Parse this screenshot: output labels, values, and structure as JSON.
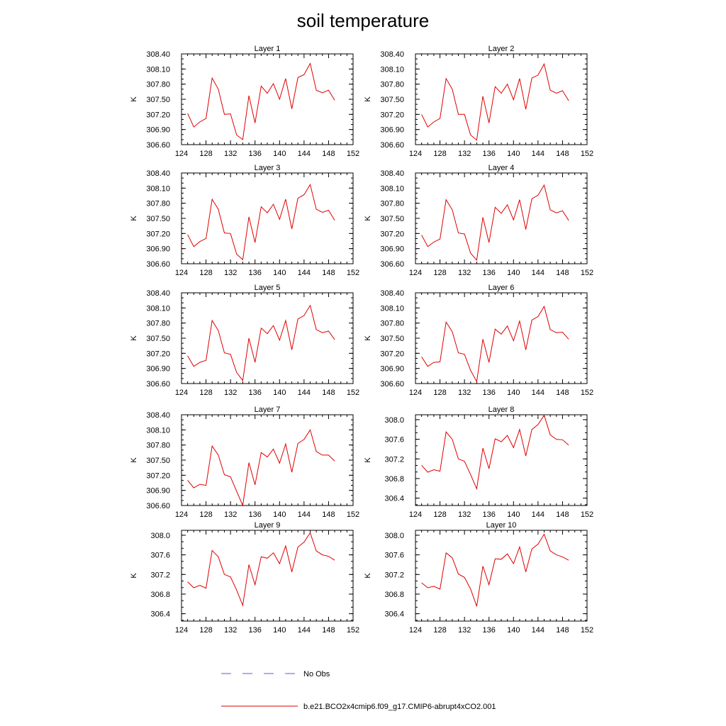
{
  "page_title": "soil temperature",
  "legend": [
    {
      "label": "No Obs",
      "color": "#5b5bd6",
      "dashed": true
    },
    {
      "label": "b.e21.BCO2x4cmip6.f09_g17.CMIP6-abrupt4xCO2.001",
      "color": "#e00000",
      "dashed": false
    }
  ],
  "chart_data": [
    {
      "type": "line",
      "title": "Layer 1",
      "ylabel": "K",
      "xlabel": "",
      "xlim": [
        124,
        152
      ],
      "ylim": [
        306.6,
        308.4
      ],
      "xticks": [
        "124",
        "128",
        "132",
        "136",
        "140",
        "144",
        "148",
        "152"
      ],
      "yticks": [
        "306.60",
        "306.90",
        "307.20",
        "307.50",
        "307.80",
        "308.10",
        "308.40"
      ],
      "x": [
        125,
        126,
        127,
        128,
        129,
        130,
        131,
        132,
        133,
        134,
        135,
        136,
        137,
        138,
        139,
        140,
        141,
        142,
        143,
        144,
        145,
        146,
        147,
        148,
        149
      ],
      "series": [
        {
          "name": "b.e21.BCO2x4cmip6.f09_g17.CMIP6-abrupt4xCO2.001",
          "values": [
            307.22,
            306.95,
            307.05,
            307.12,
            307.92,
            307.7,
            307.2,
            307.21,
            306.79,
            306.7,
            307.57,
            307.03,
            307.76,
            307.62,
            307.81,
            307.5,
            307.91,
            307.31,
            307.93,
            307.99,
            308.21,
            307.68,
            307.63,
            307.68,
            307.48
          ]
        }
      ]
    },
    {
      "type": "line",
      "title": "Layer 2",
      "ylabel": "K",
      "xlabel": "",
      "xlim": [
        124,
        152
      ],
      "ylim": [
        306.6,
        308.4
      ],
      "xticks": [
        "124",
        "128",
        "132",
        "136",
        "140",
        "144",
        "148",
        "152"
      ],
      "yticks": [
        "306.60",
        "306.90",
        "307.20",
        "307.50",
        "307.80",
        "308.10",
        "308.40"
      ],
      "x": [
        125,
        126,
        127,
        128,
        129,
        130,
        131,
        132,
        133,
        134,
        135,
        136,
        137,
        138,
        139,
        140,
        141,
        142,
        143,
        144,
        145,
        146,
        147,
        148,
        149
      ],
      "series": [
        {
          "name": "b.e21.BCO2x4cmip6.f09_g17.CMIP6-abrupt4xCO2.001",
          "values": [
            307.2,
            306.95,
            307.05,
            307.12,
            307.91,
            307.7,
            307.2,
            307.2,
            306.79,
            306.69,
            307.56,
            307.03,
            307.75,
            307.62,
            307.8,
            307.49,
            307.91,
            307.3,
            307.92,
            307.98,
            308.2,
            307.68,
            307.62,
            307.67,
            307.47
          ]
        }
      ]
    },
    {
      "type": "line",
      "title": "Layer 3",
      "ylabel": "K",
      "xlabel": "",
      "xlim": [
        124,
        152
      ],
      "ylim": [
        306.6,
        308.4
      ],
      "xticks": [
        "124",
        "128",
        "132",
        "136",
        "140",
        "144",
        "148",
        "152"
      ],
      "yticks": [
        "306.60",
        "306.90",
        "307.20",
        "307.50",
        "307.80",
        "308.10",
        "308.40"
      ],
      "x": [
        125,
        126,
        127,
        128,
        129,
        130,
        131,
        132,
        133,
        134,
        135,
        136,
        137,
        138,
        139,
        140,
        141,
        142,
        143,
        144,
        145,
        146,
        147,
        148,
        149
      ],
      "series": [
        {
          "name": "b.e21.BCO2x4cmip6.f09_g17.CMIP6-abrupt4xCO2.001",
          "values": [
            307.18,
            306.94,
            307.04,
            307.1,
            307.88,
            307.68,
            307.21,
            307.2,
            306.79,
            306.68,
            307.53,
            307.02,
            307.73,
            307.61,
            307.78,
            307.48,
            307.88,
            307.29,
            307.9,
            307.97,
            308.17,
            307.68,
            307.62,
            307.66,
            307.46
          ]
        }
      ]
    },
    {
      "type": "line",
      "title": "Layer 4",
      "ylabel": "K",
      "xlabel": "",
      "xlim": [
        124,
        152
      ],
      "ylim": [
        306.6,
        308.4
      ],
      "xticks": [
        "124",
        "128",
        "132",
        "136",
        "140",
        "144",
        "148",
        "152"
      ],
      "yticks": [
        "306.60",
        "306.90",
        "307.20",
        "307.50",
        "307.80",
        "308.10",
        "308.40"
      ],
      "x": [
        125,
        126,
        127,
        128,
        129,
        130,
        131,
        132,
        133,
        134,
        135,
        136,
        137,
        138,
        139,
        140,
        141,
        142,
        143,
        144,
        145,
        146,
        147,
        148,
        149
      ],
      "series": [
        {
          "name": "b.e21.BCO2x4cmip6.f09_g17.CMIP6-abrupt4xCO2.001",
          "values": [
            307.17,
            306.94,
            307.03,
            307.09,
            307.87,
            307.67,
            307.21,
            307.19,
            306.81,
            306.67,
            307.52,
            307.02,
            307.72,
            307.6,
            307.77,
            307.47,
            307.87,
            307.28,
            307.89,
            307.96,
            308.16,
            307.67,
            307.61,
            307.65,
            307.46
          ]
        }
      ]
    },
    {
      "type": "line",
      "title": "Layer 5",
      "ylabel": "K",
      "xlabel": "",
      "xlim": [
        124,
        152
      ],
      "ylim": [
        306.6,
        308.4
      ],
      "xticks": [
        "124",
        "128",
        "132",
        "136",
        "140",
        "144",
        "148",
        "152"
      ],
      "yticks": [
        "306.60",
        "306.90",
        "307.20",
        "307.50",
        "307.80",
        "308.10",
        "308.40"
      ],
      "x": [
        125,
        126,
        127,
        128,
        129,
        130,
        131,
        132,
        133,
        134,
        135,
        136,
        137,
        138,
        139,
        140,
        141,
        142,
        143,
        144,
        145,
        146,
        147,
        148,
        149
      ],
      "series": [
        {
          "name": "b.e21.BCO2x4cmip6.f09_g17.CMIP6-abrupt4xCO2.001",
          "values": [
            307.15,
            306.94,
            307.02,
            307.06,
            307.85,
            307.65,
            307.21,
            307.18,
            306.82,
            306.66,
            307.5,
            307.02,
            307.7,
            307.59,
            307.75,
            307.46,
            307.85,
            307.27,
            307.88,
            307.95,
            308.15,
            307.67,
            307.61,
            307.64,
            307.47
          ]
        }
      ]
    },
    {
      "type": "line",
      "title": "Layer 6",
      "ylabel": "K",
      "xlabel": "",
      "xlim": [
        124,
        152
      ],
      "ylim": [
        306.6,
        308.4
      ],
      "xticks": [
        "124",
        "128",
        "132",
        "136",
        "140",
        "144",
        "148",
        "152"
      ],
      "yticks": [
        "306.60",
        "306.90",
        "307.20",
        "307.50",
        "307.80",
        "308.10",
        "308.40"
      ],
      "x": [
        125,
        126,
        127,
        128,
        129,
        130,
        131,
        132,
        133,
        134,
        135,
        136,
        137,
        138,
        139,
        140,
        141,
        142,
        143,
        144,
        145,
        146,
        147,
        148,
        149
      ],
      "series": [
        {
          "name": "b.e21.BCO2x4cmip6.f09_g17.CMIP6-abrupt4xCO2.001",
          "values": [
            307.13,
            306.94,
            307.02,
            307.03,
            307.82,
            307.63,
            307.21,
            307.18,
            306.86,
            306.64,
            307.48,
            307.02,
            307.68,
            307.58,
            307.74,
            307.45,
            307.84,
            307.27,
            307.86,
            307.93,
            308.13,
            307.67,
            307.61,
            307.62,
            307.48
          ]
        }
      ]
    },
    {
      "type": "line",
      "title": "Layer 7",
      "ylabel": "K",
      "xlabel": "",
      "xlim": [
        124,
        152
      ],
      "ylim": [
        306.6,
        308.4
      ],
      "xticks": [
        "124",
        "128",
        "132",
        "136",
        "140",
        "144",
        "148",
        "152"
      ],
      "yticks": [
        "306.60",
        "306.90",
        "307.20",
        "307.50",
        "307.80",
        "308.10",
        "308.40"
      ],
      "x": [
        125,
        126,
        127,
        128,
        129,
        130,
        131,
        132,
        133,
        134,
        135,
        136,
        137,
        138,
        139,
        140,
        141,
        142,
        143,
        144,
        145,
        146,
        147,
        148,
        149
      ],
      "series": [
        {
          "name": "b.e21.BCO2x4cmip6.f09_g17.CMIP6-abrupt4xCO2.001",
          "values": [
            307.1,
            306.95,
            307.02,
            307.0,
            307.78,
            307.6,
            307.21,
            307.17,
            306.88,
            306.6,
            307.45,
            307.01,
            307.65,
            307.56,
            307.72,
            307.44,
            307.82,
            307.26,
            307.83,
            307.91,
            308.1,
            307.67,
            307.6,
            307.6,
            307.48
          ]
        }
      ]
    },
    {
      "type": "line",
      "title": "Layer 8",
      "ylabel": "K",
      "xlabel": "",
      "xlim": [
        124,
        152
      ],
      "ylim": [
        306.25,
        308.1
      ],
      "xticks": [
        "124",
        "128",
        "132",
        "136",
        "140",
        "144",
        "148",
        "152"
      ],
      "yticks": [
        "306.4",
        "306.8",
        "307.2",
        "307.6",
        "308.0"
      ],
      "x": [
        125,
        126,
        127,
        128,
        129,
        130,
        131,
        132,
        133,
        134,
        135,
        136,
        137,
        138,
        139,
        140,
        141,
        142,
        143,
        144,
        145,
        146,
        147,
        148,
        149
      ],
      "series": [
        {
          "name": "b.e21.BCO2x4cmip6.f09_g17.CMIP6-abrupt4xCO2.001",
          "values": [
            307.07,
            306.93,
            306.98,
            306.95,
            307.75,
            307.6,
            307.2,
            307.15,
            306.88,
            306.59,
            307.42,
            307.0,
            307.61,
            307.55,
            307.68,
            307.43,
            307.8,
            307.26,
            307.8,
            307.9,
            308.09,
            307.69,
            307.6,
            307.59,
            307.48
          ]
        }
      ]
    },
    {
      "type": "line",
      "title": "Layer 9",
      "ylabel": "K",
      "xlabel": "",
      "xlim": [
        124,
        152
      ],
      "ylim": [
        306.25,
        308.1
      ],
      "xticks": [
        "124",
        "128",
        "132",
        "136",
        "140",
        "144",
        "148",
        "152"
      ],
      "yticks": [
        "306.4",
        "306.8",
        "307.2",
        "307.6",
        "308.0"
      ],
      "x": [
        125,
        126,
        127,
        128,
        129,
        130,
        131,
        132,
        133,
        134,
        135,
        136,
        137,
        138,
        139,
        140,
        141,
        142,
        143,
        144,
        145,
        146,
        147,
        148,
        149
      ],
      "series": [
        {
          "name": "b.e21.BCO2x4cmip6.f09_g17.CMIP6-abrupt4xCO2.001",
          "values": [
            307.05,
            306.93,
            306.98,
            306.92,
            307.69,
            307.56,
            307.2,
            307.15,
            306.88,
            306.57,
            307.4,
            306.99,
            307.56,
            307.53,
            307.64,
            307.42,
            307.78,
            307.25,
            307.76,
            307.86,
            308.05,
            307.68,
            307.6,
            307.57,
            307.49
          ]
        }
      ]
    },
    {
      "type": "line",
      "title": "Layer 10",
      "ylabel": "K",
      "xlabel": "",
      "xlim": [
        124,
        152
      ],
      "ylim": [
        306.25,
        308.1
      ],
      "xticks": [
        "124",
        "128",
        "132",
        "136",
        "140",
        "144",
        "148",
        "152"
      ],
      "yticks": [
        "306.4",
        "306.8",
        "307.2",
        "307.6",
        "308.0"
      ],
      "x": [
        125,
        126,
        127,
        128,
        129,
        130,
        131,
        132,
        133,
        134,
        135,
        136,
        137,
        138,
        139,
        140,
        141,
        142,
        143,
        144,
        145,
        146,
        147,
        148,
        149
      ],
      "series": [
        {
          "name": "b.e21.BCO2x4cmip6.f09_g17.CMIP6-abrupt4xCO2.001",
          "values": [
            307.03,
            306.93,
            306.96,
            306.9,
            307.64,
            307.54,
            307.21,
            307.14,
            306.9,
            306.55,
            307.37,
            306.99,
            307.52,
            307.51,
            307.62,
            307.42,
            307.76,
            307.25,
            307.72,
            307.82,
            308.02,
            307.68,
            307.6,
            307.56,
            307.49
          ]
        }
      ]
    }
  ]
}
